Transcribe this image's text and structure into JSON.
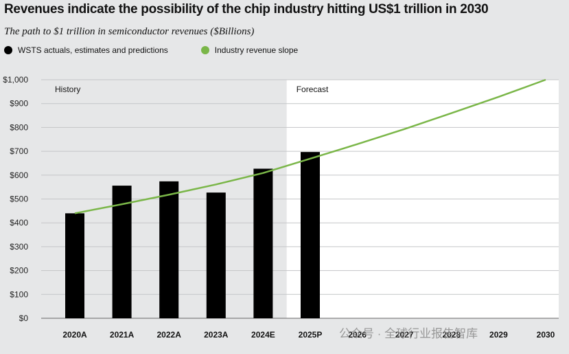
{
  "chart_data": {
    "type": "bar",
    "title": "Revenues indicate the possibility of the chip industry hitting US$1 trillion in 2030",
    "subtitle": "The path to $1 trillion in semiconductor revenues ($Billions)",
    "categories": [
      "2020A",
      "2021A",
      "2022A",
      "2023A",
      "2024E",
      "2025P",
      "2026",
      "2027",
      "2028",
      "2029",
      "2030"
    ],
    "series": [
      {
        "name": "WSTS actuals, estimates and predictions",
        "type": "bar",
        "color": "#000000",
        "values": [
          440,
          556,
          574,
          527,
          627,
          697,
          null,
          null,
          null,
          null,
          null
        ]
      },
      {
        "name": "Industry revenue slope",
        "type": "line",
        "color": "#7ab648",
        "values": [
          440,
          478,
          518,
          561,
          609,
          669,
          730,
          793,
          860,
          928,
          1000
        ]
      }
    ],
    "y_ticks": [
      "$0",
      "$100",
      "$200",
      "$300",
      "$400",
      "$500",
      "$600",
      "$700",
      "$800",
      "$900",
      "$1,000"
    ],
    "ylim": [
      0,
      1000
    ],
    "grid": true,
    "legend": "top",
    "annotations": {
      "history": "History",
      "forecast": "Forecast"
    },
    "forecast_start_index": 5
  },
  "watermark": "公众号 · 全球行业报告智库"
}
